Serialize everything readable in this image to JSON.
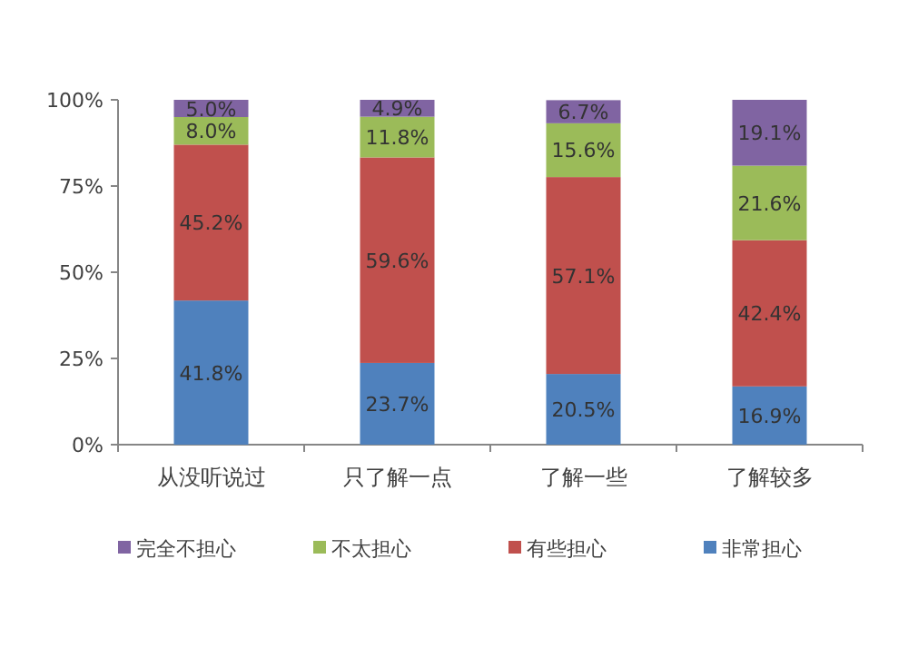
{
  "chart_data": {
    "type": "bar",
    "stacked": true,
    "categories": [
      "从没听说过",
      "只了解一点",
      "了解一些",
      "了解较多"
    ],
    "series": [
      {
        "name": "非常担心",
        "color": "#4f81bd",
        "values": [
          41.8,
          23.7,
          20.5,
          16.9
        ],
        "value_labels": [
          "41.8%",
          "23.7%",
          "20.5%",
          "16.9%"
        ]
      },
      {
        "name": "有些担心",
        "color": "#c0504d",
        "values": [
          45.2,
          59.6,
          57.1,
          42.4
        ],
        "value_labels": [
          "45.2%",
          "59.6%",
          "57.1%",
          "42.4%"
        ]
      },
      {
        "name": "不太担心",
        "color": "#9bbb59",
        "values": [
          8.0,
          11.8,
          15.6,
          21.6
        ],
        "value_labels": [
          "8.0%",
          "11.8%",
          "15.6%",
          "21.6%"
        ]
      },
      {
        "name": "完全不担心",
        "color": "#8064a2",
        "values": [
          5.0,
          4.9,
          6.7,
          19.1
        ],
        "value_labels": [
          "5.0%",
          "4.9%",
          "6.7%",
          "19.1%"
        ]
      }
    ],
    "ylim": [
      0,
      100
    ],
    "yticks": [
      {
        "value": 0,
        "label": "0%"
      },
      {
        "value": 25,
        "label": "25%"
      },
      {
        "value": 50,
        "label": "50%"
      },
      {
        "value": 75,
        "label": "75%"
      },
      {
        "value": 100,
        "label": "100%"
      }
    ],
    "legend": "bottom"
  }
}
